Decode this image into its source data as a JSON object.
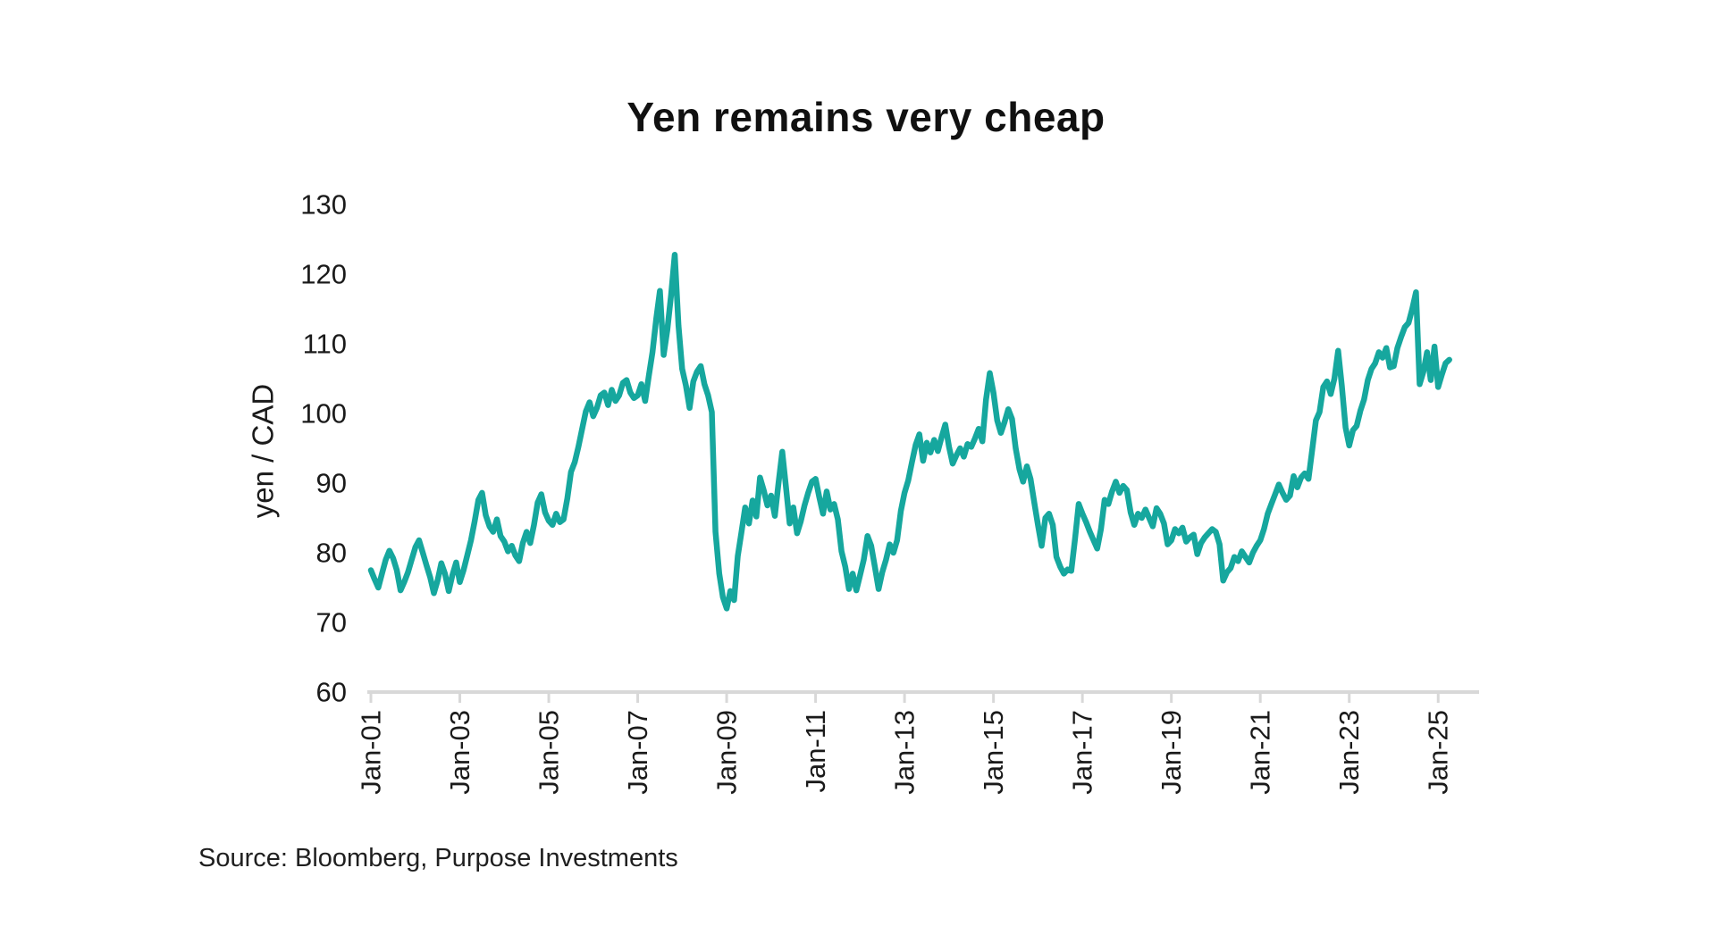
{
  "title": "Yen remains very cheap",
  "source": "Source: Bloomberg, Purpose Investments",
  "colors": {
    "line": "#16A79E",
    "axis": "#D8D8D8",
    "text": "#1A1A1A"
  },
  "chart_data": {
    "type": "line",
    "title": "Yen remains very cheap",
    "xlabel": "",
    "ylabel": "yen / CAD",
    "ylim": [
      60,
      130
    ],
    "grid": false,
    "legend": "none",
    "y_ticks": [
      60,
      70,
      80,
      90,
      100,
      110,
      120,
      130
    ],
    "x_ticks": [
      "Jan-01",
      "Jan-03",
      "Jan-05",
      "Jan-07",
      "Jan-09",
      "Jan-11",
      "Jan-13",
      "Jan-15",
      "Jan-17",
      "Jan-19",
      "Jan-21",
      "Jan-23",
      "Jan-25"
    ],
    "x_tick_interval_years": 2,
    "series": [
      {
        "name": "yen / CAD",
        "start": "2001-01",
        "interval": "monthly",
        "values": [
          77.5,
          76.2,
          75.0,
          77.0,
          79.0,
          80.3,
          79.2,
          77.5,
          74.6,
          75.8,
          77.2,
          79.0,
          80.8,
          81.8,
          80.0,
          78.2,
          76.5,
          74.2,
          76.0,
          78.5,
          77.0,
          74.5,
          76.8,
          78.6,
          75.8,
          77.5,
          79.6,
          81.8,
          84.5,
          87.6,
          88.6,
          85.4,
          83.8,
          83.0,
          84.8,
          82.4,
          81.6,
          80.2,
          81.0,
          79.6,
          78.8,
          81.4,
          83.0,
          81.4,
          84.0,
          87.2,
          88.4,
          85.8,
          84.6,
          84.0,
          85.6,
          84.4,
          84.8,
          87.8,
          91.6,
          93.0,
          95.2,
          97.8,
          100.3,
          101.6,
          99.6,
          100.8,
          102.6,
          103.0,
          101.2,
          103.4,
          101.8,
          102.6,
          104.4,
          104.8,
          103.0,
          102.2,
          102.6,
          104.2,
          101.8,
          105.4,
          108.8,
          113.6,
          117.6,
          108.4,
          112.0,
          117.0,
          122.8,
          112.6,
          106.4,
          104.0,
          100.8,
          104.6,
          106.0,
          106.8,
          104.2,
          102.6,
          100.2,
          83.0,
          77.0,
          73.6,
          72.0,
          74.5,
          73.2,
          79.5,
          83.0,
          86.5,
          84.2,
          87.5,
          85.2,
          90.8,
          89.0,
          86.8,
          88.2,
          85.3,
          90.0,
          94.5,
          89.5,
          84.2,
          86.5,
          82.8,
          84.5,
          86.8,
          88.6,
          90.2,
          90.6,
          88.0,
          85.6,
          88.8,
          86.2,
          87.0,
          84.8,
          80.2,
          78.0,
          74.8,
          77.0,
          74.6,
          76.8,
          79.0,
          82.4,
          81.0,
          78.0,
          74.8,
          77.2,
          79.0,
          81.2,
          80.0,
          81.8,
          86.0,
          88.6,
          90.4,
          93.0,
          95.5,
          97.0,
          93.2,
          95.8,
          94.4,
          96.2,
          94.6,
          96.6,
          98.4,
          95.2,
          92.8,
          94.0,
          95.0,
          93.8,
          95.6,
          95.2,
          96.4,
          97.8,
          96.0,
          102.0,
          105.8,
          103.0,
          99.0,
          97.2,
          98.8,
          100.6,
          99.2,
          95.0,
          92.0,
          90.2,
          92.4,
          90.6,
          87.2,
          84.0,
          81.0,
          85.0,
          85.6,
          84.0,
          79.4,
          78.0,
          77.0,
          77.6,
          77.4,
          82.0,
          87.0,
          85.6,
          84.4,
          83.0,
          81.8,
          80.6,
          83.4,
          87.6,
          87.0,
          88.8,
          90.2,
          88.6,
          89.6,
          89.0,
          85.8,
          84.0,
          85.6,
          85.0,
          86.2,
          85.0,
          83.8,
          86.4,
          85.6,
          84.2,
          81.2,
          81.8,
          83.4,
          82.8,
          83.6,
          81.6,
          82.2,
          82.6,
          79.8,
          81.4,
          82.2,
          82.8,
          83.4,
          83.0,
          81.2,
          76.0,
          77.2,
          77.8,
          79.4,
          78.8,
          80.2,
          79.4,
          78.6,
          80.0,
          81.0,
          81.8,
          83.4,
          85.6,
          87.0,
          88.4,
          89.8,
          88.6,
          87.6,
          88.2,
          91.0,
          89.4,
          90.8,
          91.4,
          90.6,
          94.8,
          99.0,
          100.2,
          103.8,
          104.6,
          102.8,
          105.0,
          109.0,
          104.0,
          98.0,
          95.4,
          97.6,
          98.2,
          100.4,
          102.0,
          104.8,
          106.4,
          107.2,
          108.8,
          108.0,
          109.4,
          106.6,
          106.8,
          109.4,
          111.0,
          112.4,
          113.0,
          115.0,
          117.4,
          104.2,
          106.0,
          108.8,
          104.8,
          109.6,
          103.8,
          105.6,
          107.2,
          107.7
        ]
      }
    ]
  }
}
